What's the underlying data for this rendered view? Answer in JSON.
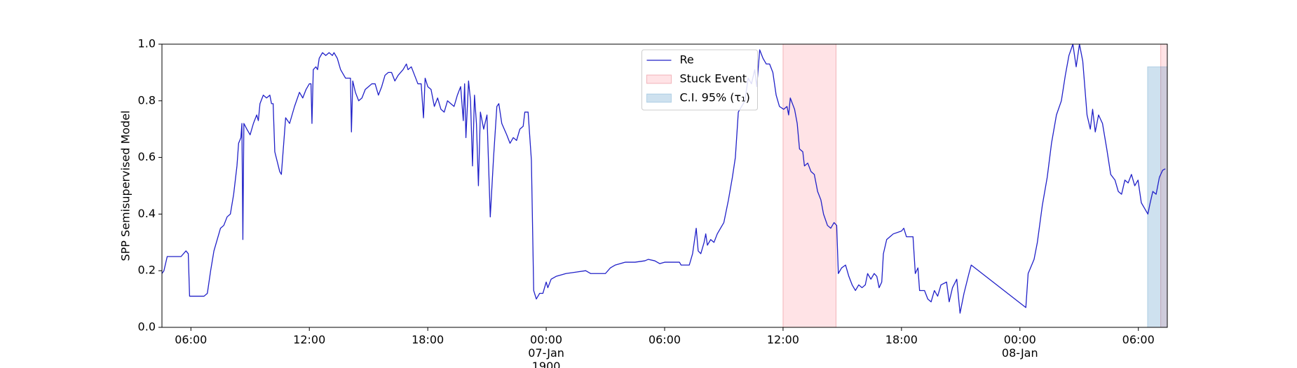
{
  "chart_data": {
    "type": "line",
    "ylabel": "SPP Semisupervised Model",
    "legend": "upper center",
    "xlim": [
      "1900-01-06 04:32",
      "1900-01-08 07:28"
    ],
    "ylim": [
      0,
      1
    ],
    "xticks": [
      {
        "value": "1900-01-06 06:00",
        "label": "06:00"
      },
      {
        "value": "1900-01-06 12:00",
        "label": "12:00"
      },
      {
        "value": "1900-01-06 18:00",
        "label": "18:00"
      },
      {
        "value": "1900-01-07 00:00",
        "label": "00:00\n07-Jan\n1900"
      },
      {
        "value": "1900-01-07 06:00",
        "label": "06:00"
      },
      {
        "value": "1900-01-07 12:00",
        "label": "12:00"
      },
      {
        "value": "1900-01-07 18:00",
        "label": "18:00"
      },
      {
        "value": "1900-01-08 00:00",
        "label": "00:00\n08-Jan"
      },
      {
        "value": "1900-01-08 06:00",
        "label": "06:00"
      }
    ],
    "yticks": [
      {
        "value": 0,
        "label": "0.0"
      },
      0.2,
      0.4,
      0.6,
      0.8,
      {
        "value": 1,
        "label": "1.0"
      }
    ],
    "regions": [
      {
        "name": "Stuck Event",
        "color": "rgba(255,0,30,0.11)",
        "edge": "rgba(230,120,130,0.5)",
        "intervals": [
          [
            "1900-01-07 12:00",
            "1900-01-07 14:41"
          ],
          [
            "1900-01-08 07:08",
            "1900-01-08 07:28"
          ]
        ]
      },
      {
        "name": "C.I. 95% (τ₁)",
        "color": "rgba(31,119,180,0.22)",
        "edge": "rgba(31,119,180,0.25)",
        "intervals": [
          [
            "1900-01-08 06:28",
            "1900-01-08 07:28"
          ]
        ],
        "y": [
          0,
          0.92
        ]
      }
    ],
    "x": [
      "1900-01-06 04:32",
      "1900-01-06 04:38",
      "1900-01-06 04:48",
      "1900-01-06 05:30",
      "1900-01-06 05:45",
      "1900-01-06 05:52",
      "1900-01-06 05:56",
      "1900-01-06 06:40",
      "1900-01-06 06:50",
      "1900-01-06 07:00",
      "1900-01-06 07:10",
      "1900-01-06 07:30",
      "1900-01-06 07:40",
      "1900-01-06 07:50",
      "1900-01-06 08:00",
      "1900-01-06 08:10",
      "1900-01-06 08:20",
      "1900-01-06 08:25",
      "1900-01-06 08:32",
      "1900-01-06 08:35",
      "1900-01-06 08:38",
      "1900-01-06 08:41",
      "1900-01-06 08:50",
      "1900-01-06 09:00",
      "1900-01-06 09:10",
      "1900-01-06 09:20",
      "1900-01-06 09:25",
      "1900-01-06 09:30",
      "1900-01-06 09:40",
      "1900-01-06 09:50",
      "1900-01-06 10:00",
      "1900-01-06 10:05",
      "1900-01-06 10:10",
      "1900-01-06 10:15",
      "1900-01-06 10:30",
      "1900-01-06 10:35",
      "1900-01-06 10:48",
      "1900-01-06 11:00",
      "1900-01-06 11:15",
      "1900-01-06 11:30",
      "1900-01-06 11:40",
      "1900-01-06 11:50",
      "1900-01-06 12:00",
      "1900-01-06 12:05",
      "1900-01-06 12:08",
      "1900-01-06 12:12",
      "1900-01-06 12:20",
      "1900-01-06 12:25",
      "1900-01-06 12:30",
      "1900-01-06 12:40",
      "1900-01-06 12:50",
      "1900-01-06 13:00",
      "1900-01-06 13:10",
      "1900-01-06 13:15",
      "1900-01-06 13:25",
      "1900-01-06 13:35",
      "1900-01-06 13:45",
      "1900-01-06 13:50",
      "1900-01-06 14:05",
      "1900-01-06 14:08",
      "1900-01-06 14:12",
      "1900-01-06 14:20",
      "1900-01-06 14:30",
      "1900-01-06 14:40",
      "1900-01-06 14:50",
      "1900-01-06 15:00",
      "1900-01-06 15:10",
      "1900-01-06 15:20",
      "1900-01-06 15:30",
      "1900-01-06 15:40",
      "1900-01-06 15:50",
      "1900-01-06 16:00",
      "1900-01-06 16:10",
      "1900-01-06 16:20",
      "1900-01-06 16:30",
      "1900-01-06 16:45",
      "1900-01-06 16:55",
      "1900-01-06 17:00",
      "1900-01-06 17:10",
      "1900-01-06 17:20",
      "1900-01-06 17:30",
      "1900-01-06 17:40",
      "1900-01-06 17:47",
      "1900-01-06 17:52",
      "1900-01-06 18:00",
      "1900-01-06 18:10",
      "1900-01-06 18:20",
      "1900-01-06 18:30",
      "1900-01-06 18:40",
      "1900-01-06 18:50",
      "1900-01-06 19:00",
      "1900-01-06 19:10",
      "1900-01-06 19:20",
      "1900-01-06 19:30",
      "1900-01-06 19:40",
      "1900-01-06 19:48",
      "1900-01-06 19:52",
      "1900-01-06 19:56",
      "1900-01-06 20:04",
      "1900-01-06 20:10",
      "1900-01-06 20:16",
      "1900-01-06 20:22",
      "1900-01-06 20:28",
      "1900-01-06 20:34",
      "1900-01-06 20:40",
      "1900-01-06 20:50",
      "1900-01-06 21:00",
      "1900-01-06 21:10",
      "1900-01-06 21:20",
      "1900-01-06 21:30",
      "1900-01-06 21:36",
      "1900-01-06 21:45",
      "1900-01-06 22:00",
      "1900-01-06 22:10",
      "1900-01-06 22:20",
      "1900-01-06 22:30",
      "1900-01-06 22:40",
      "1900-01-06 22:50",
      "1900-01-06 22:55",
      "1900-01-06 23:05",
      "1900-01-06 23:15",
      "1900-01-06 23:22",
      "1900-01-06 23:30",
      "1900-01-06 23:40",
      "1900-01-06 23:50",
      "1900-01-07 00:00",
      "1900-01-07 00:05",
      "1900-01-07 00:15",
      "1900-01-07 00:30",
      "1900-01-07 01:00",
      "1900-01-07 01:30",
      "1900-01-07 02:00",
      "1900-01-07 02:15",
      "1900-01-07 03:00",
      "1900-01-07 03:15",
      "1900-01-07 03:30",
      "1900-01-07 04:00",
      "1900-01-07 04:30",
      "1900-01-07 05:00",
      "1900-01-07 05:10",
      "1900-01-07 05:30",
      "1900-01-07 05:45",
      "1900-01-07 06:00",
      "1900-01-07 06:45",
      "1900-01-07 06:50",
      "1900-01-07 07:15",
      "1900-01-07 07:25",
      "1900-01-07 07:36",
      "1900-01-07 07:42",
      "1900-01-07 07:50",
      "1900-01-07 08:00",
      "1900-01-07 08:05",
      "1900-01-07 08:10",
      "1900-01-07 08:20",
      "1900-01-07 08:30",
      "1900-01-07 08:40",
      "1900-01-07 08:50",
      "1900-01-07 09:00",
      "1900-01-07 09:14",
      "1900-01-07 09:26",
      "1900-01-07 09:35",
      "1900-01-07 09:44",
      "1900-01-07 10:04",
      "1900-01-07 10:14",
      "1900-01-07 10:24",
      "1900-01-07 10:34",
      "1900-01-07 10:40",
      "1900-01-07 10:49",
      "1900-01-07 10:59",
      "1900-01-07 11:09",
      "1900-01-07 11:19",
      "1900-01-07 11:29",
      "1900-01-07 11:39",
      "1900-01-07 11:49",
      "1900-01-07 12:02",
      "1900-01-07 12:12",
      "1900-01-07 12:17",
      "1900-01-07 12:22",
      "1900-01-07 12:35",
      "1900-01-07 12:43",
      "1900-01-07 12:50",
      "1900-01-07 13:00",
      "1900-01-07 13:05",
      "1900-01-07 13:15",
      "1900-01-07 13:25",
      "1900-01-07 13:35",
      "1900-01-07 13:45",
      "1900-01-07 13:55",
      "1900-01-07 14:03",
      "1900-01-07 14:15",
      "1900-01-07 14:25",
      "1900-01-07 14:35",
      "1900-01-07 14:43",
      "1900-01-07 14:48",
      "1900-01-07 14:58",
      "1900-01-07 15:10",
      "1900-01-07 15:20",
      "1900-01-07 15:30",
      "1900-01-07 15:40",
      "1900-01-07 15:50",
      "1900-01-07 16:00",
      "1900-01-07 16:10",
      "1900-01-07 16:17",
      "1900-01-07 16:27",
      "1900-01-07 16:37",
      "1900-01-07 16:45",
      "1900-01-07 16:52",
      "1900-01-07 17:00",
      "1900-01-07 17:05",
      "1900-01-07 17:15",
      "1900-01-07 17:35",
      "1900-01-07 18:00",
      "1900-01-07 18:07",
      "1900-01-07 18:15",
      "1900-01-07 18:35",
      "1900-01-07 18:42",
      "1900-01-07 18:50",
      "1900-01-07 18:55",
      "1900-01-07 19:10",
      "1900-01-07 19:20",
      "1900-01-07 19:30",
      "1900-01-07 19:40",
      "1900-01-07 19:50",
      "1900-01-07 20:00",
      "1900-01-07 20:17",
      "1900-01-07 20:25",
      "1900-01-07 20:35",
      "1900-01-07 20:48",
      "1900-01-07 20:58",
      "1900-01-07 21:10",
      "1900-01-07 21:25",
      "1900-01-07 21:32",
      "1900-01-08 00:18",
      "1900-01-08 00:25",
      "1900-01-08 00:43",
      "1900-01-08 00:53",
      "1900-01-08 01:08",
      "1900-01-08 01:23",
      "1900-01-08 01:36",
      "1900-01-08 01:51",
      "1900-01-08 02:06",
      "1900-01-08 02:18",
      "1900-01-08 02:29",
      "1900-01-08 02:41",
      "1900-01-08 02:51",
      "1900-01-08 03:01",
      "1900-01-08 03:11",
      "1900-01-08 03:24",
      "1900-01-08 03:34",
      "1900-01-08 03:41",
      "1900-01-08 03:49",
      "1900-01-08 03:59",
      "1900-01-08 04:11",
      "1900-01-08 04:24",
      "1900-01-08 04:36",
      "1900-01-08 04:49",
      "1900-01-08 04:59",
      "1900-01-08 05:09",
      "1900-01-08 05:19",
      "1900-01-08 05:29",
      "1900-01-08 05:39",
      "1900-01-08 05:49",
      "1900-01-08 05:59",
      "1900-01-08 06:09",
      "1900-01-08 06:19",
      "1900-01-08 06:29",
      "1900-01-08 06:36",
      "1900-01-08 06:44",
      "1900-01-08 06:54",
      "1900-01-08 07:04",
      "1900-01-08 07:14",
      "1900-01-08 07:22"
    ],
    "series": [
      {
        "name": "Re",
        "color": "#2020c8",
        "values": [
          0.19,
          0.2,
          0.25,
          0.25,
          0.27,
          0.26,
          0.11,
          0.11,
          0.12,
          0.2,
          0.27,
          0.35,
          0.36,
          0.39,
          0.4,
          0.47,
          0.57,
          0.65,
          0.67,
          0.72,
          0.31,
          0.72,
          0.7,
          0.68,
          0.72,
          0.75,
          0.73,
          0.79,
          0.82,
          0.81,
          0.82,
          0.79,
          0.79,
          0.62,
          0.55,
          0.54,
          0.74,
          0.72,
          0.78,
          0.83,
          0.81,
          0.84,
          0.86,
          0.86,
          0.72,
          0.91,
          0.92,
          0.91,
          0.95,
          0.97,
          0.96,
          0.97,
          0.96,
          0.97,
          0.95,
          0.91,
          0.89,
          0.88,
          0.88,
          0.69,
          0.87,
          0.83,
          0.8,
          0.81,
          0.84,
          0.85,
          0.86,
          0.86,
          0.82,
          0.85,
          0.89,
          0.9,
          0.9,
          0.87,
          0.89,
          0.91,
          0.93,
          0.91,
          0.92,
          0.89,
          0.86,
          0.86,
          0.74,
          0.88,
          0.85,
          0.84,
          0.78,
          0.81,
          0.77,
          0.76,
          0.8,
          0.79,
          0.78,
          0.82,
          0.85,
          0.73,
          0.86,
          0.67,
          0.87,
          0.8,
          0.57,
          0.82,
          0.72,
          0.5,
          0.76,
          0.7,
          0.75,
          0.39,
          0.6,
          0.78,
          0.79,
          0.72,
          0.68,
          0.65,
          0.67,
          0.66,
          0.7,
          0.71,
          0.76,
          0.76,
          0.59,
          0.13,
          0.1,
          0.12,
          0.12,
          0.16,
          0.14,
          0.17,
          0.18,
          0.19,
          0.195,
          0.2,
          0.19,
          0.19,
          0.21,
          0.22,
          0.23,
          0.23,
          0.235,
          0.24,
          0.235,
          0.225,
          0.23,
          0.23,
          0.22,
          0.22,
          0.26,
          0.35,
          0.27,
          0.26,
          0.3,
          0.33,
          0.29,
          0.31,
          0.3,
          0.33,
          0.35,
          0.37,
          0.45,
          0.53,
          0.6,
          0.76,
          0.8,
          0.88,
          0.86,
          0.91,
          0.85,
          0.98,
          0.95,
          0.93,
          0.93,
          0.9,
          0.82,
          0.78,
          0.77,
          0.78,
          0.75,
          0.81,
          0.77,
          0.72,
          0.63,
          0.62,
          0.57,
          0.58,
          0.55,
          0.54,
          0.48,
          0.45,
          0.4,
          0.36,
          0.35,
          0.37,
          0.36,
          0.19,
          0.21,
          0.22,
          0.18,
          0.15,
          0.13,
          0.15,
          0.14,
          0.15,
          0.19,
          0.17,
          0.19,
          0.18,
          0.14,
          0.16,
          0.26,
          0.31,
          0.33,
          0.34,
          0.35,
          0.32,
          0.32,
          0.19,
          0.21,
          0.13,
          0.13,
          0.1,
          0.09,
          0.13,
          0.11,
          0.15,
          0.16,
          0.09,
          0.14,
          0.17,
          0.05,
          0.12,
          0.19,
          0.22,
          0.07,
          0.19,
          0.24,
          0.3,
          0.43,
          0.53,
          0.65,
          0.75,
          0.8,
          0.89,
          0.96,
          1.0,
          0.92,
          1.0,
          0.94,
          0.75,
          0.7,
          0.77,
          0.69,
          0.75,
          0.72,
          0.63,
          0.54,
          0.52,
          0.48,
          0.47,
          0.52,
          0.51,
          0.54,
          0.5,
          0.52,
          0.44,
          0.42,
          0.4,
          0.44,
          0.48,
          0.47,
          0.53,
          0.555,
          0.56
        ]
      }
    ]
  }
}
